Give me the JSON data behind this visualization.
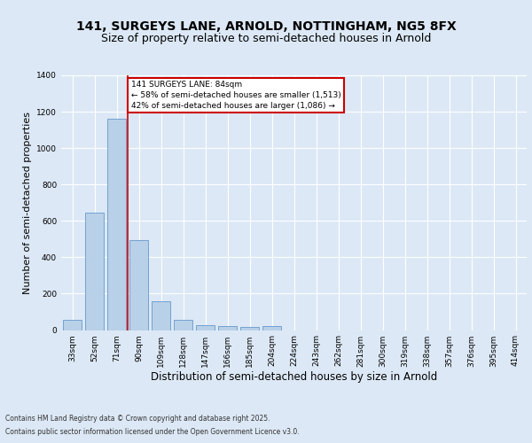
{
  "title_line1": "141, SURGEYS LANE, ARNOLD, NOTTINGHAM, NG5 8FX",
  "title_line2": "Size of property relative to semi-detached houses in Arnold",
  "xlabel": "Distribution of semi-detached houses by size in Arnold",
  "ylabel": "Number of semi-detached properties",
  "categories": [
    "33sqm",
    "52sqm",
    "71sqm",
    "90sqm",
    "109sqm",
    "128sqm",
    "147sqm",
    "166sqm",
    "185sqm",
    "204sqm",
    "224sqm",
    "243sqm",
    "262sqm",
    "281sqm",
    "300sqm",
    "319sqm",
    "338sqm",
    "357sqm",
    "376sqm",
    "395sqm",
    "414sqm"
  ],
  "values": [
    55,
    645,
    1160,
    495,
    160,
    55,
    25,
    20,
    15,
    20,
    0,
    0,
    0,
    0,
    0,
    0,
    0,
    0,
    0,
    0,
    0
  ],
  "bar_color": "#b8d0e8",
  "bar_edge_color": "#6699cc",
  "red_line_x": 2.5,
  "annotation_text": "141 SURGEYS LANE: 84sqm\n← 58% of semi-detached houses are smaller (1,513)\n42% of semi-detached houses are larger (1,086) →",
  "annotation_box_color": "#ffffff",
  "annotation_box_edge_color": "#cc0000",
  "ylim": [
    0,
    1400
  ],
  "yticks": [
    0,
    200,
    400,
    600,
    800,
    1000,
    1200,
    1400
  ],
  "background_color": "#dce8f5",
  "plot_background_color": "#dce8f5",
  "footer_line1": "Contains HM Land Registry data © Crown copyright and database right 2025.",
  "footer_line2": "Contains public sector information licensed under the Open Government Licence v3.0.",
  "grid_color": "#ffffff",
  "title_fontsize": 10,
  "subtitle_fontsize": 9,
  "label_fontsize": 8,
  "tick_fontsize": 6.5,
  "footer_fontsize": 5.5
}
